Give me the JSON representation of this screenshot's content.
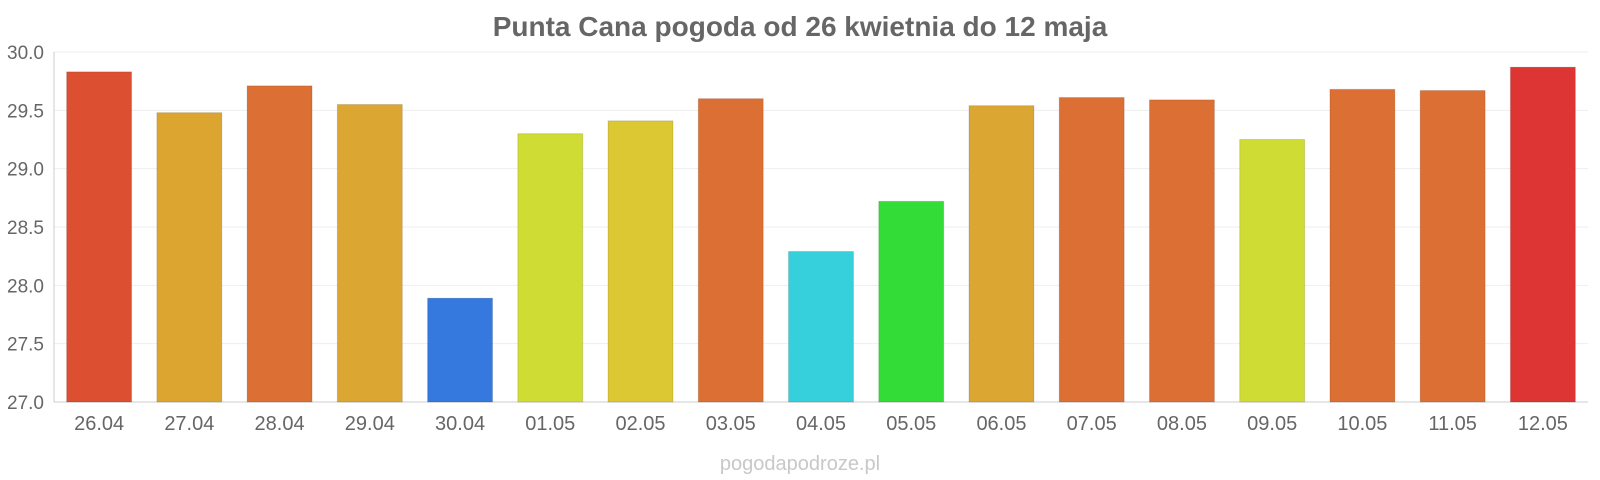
{
  "chart_data": {
    "type": "bar",
    "title": "Punta Cana pogoda od 26 kwietnia do 12 maja",
    "xlabel": "",
    "ylabel": "",
    "ylim": [
      27.0,
      30.0
    ],
    "yticks": [
      "27.0",
      "27.5",
      "28.0",
      "28.5",
      "29.0",
      "29.5",
      "30.0"
    ],
    "categories": [
      "26.04",
      "27.04",
      "28.04",
      "29.04",
      "30.04",
      "01.05",
      "02.05",
      "03.05",
      "04.05",
      "05.05",
      "06.05",
      "07.05",
      "08.05",
      "09.05",
      "10.05",
      "11.05",
      "12.05"
    ],
    "values": [
      29.83,
      29.48,
      29.71,
      29.55,
      27.89,
      29.3,
      29.41,
      29.6,
      28.29,
      28.72,
      29.54,
      29.61,
      29.59,
      29.25,
      29.68,
      29.67,
      29.87
    ],
    "colors": [
      "#dc4f31",
      "#dba530",
      "#dc6f33",
      "#dba632",
      "#3578de",
      "#cfdc33",
      "#dbc833",
      "#dc6f33",
      "#36cfdc",
      "#33dc36",
      "#dba632",
      "#dc6f33",
      "#dc6f33",
      "#cfdc33",
      "#dc6f33",
      "#dc6f33",
      "#dc3533"
    ],
    "grid": true,
    "legend": "none"
  },
  "footer": {
    "source": "pogodapodroze.pl"
  }
}
